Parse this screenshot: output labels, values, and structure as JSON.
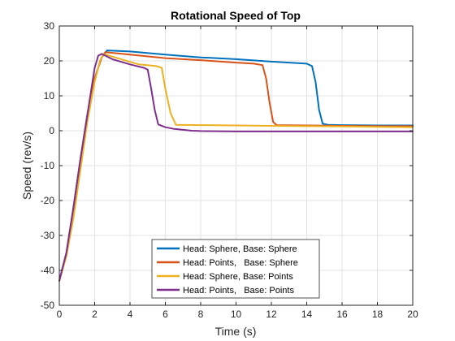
{
  "chart_data": {
    "type": "line",
    "title": "Rotational Speed of Top",
    "xlabel": "Time (s)",
    "ylabel": "Speed (rev/s)",
    "xlim": [
      0,
      20
    ],
    "ylim": [
      -50,
      30
    ],
    "xticks": [
      0,
      2,
      4,
      6,
      8,
      10,
      12,
      14,
      16,
      18,
      20
    ],
    "yticks": [
      -50,
      -40,
      -30,
      -20,
      -10,
      0,
      10,
      20,
      30
    ],
    "grid": true,
    "legend_position": "bottom-center",
    "series": [
      {
        "name": "Head: Sphere, Base: Sphere",
        "color": "#0072BD",
        "x": [
          0,
          0.4,
          0.8,
          1.2,
          1.6,
          2.0,
          2.4,
          2.7,
          4.0,
          6.0,
          8.0,
          10.0,
          12.0,
          13.0,
          14.0,
          14.3,
          14.5,
          14.7,
          14.9,
          15.2,
          16,
          18,
          20
        ],
        "y": [
          -43,
          -35,
          -22,
          -8,
          5,
          15,
          21,
          23,
          22.7,
          21.8,
          21,
          20.5,
          19.8,
          19.5,
          19.2,
          18.5,
          14,
          6,
          2,
          1.7,
          1.6,
          1.5,
          1.5
        ]
      },
      {
        "name": "Head: Points,   Base: Sphere",
        "color": "#D95319",
        "x": [
          0,
          0.4,
          0.8,
          1.2,
          1.6,
          2.0,
          2.4,
          2.6,
          4.0,
          6.0,
          8.0,
          10.0,
          11.0,
          11.5,
          11.7,
          11.9,
          12.1,
          12.3,
          14,
          16,
          18,
          20
        ],
        "y": [
          -43,
          -35,
          -22,
          -8,
          5,
          15,
          21,
          22.5,
          21.8,
          20.8,
          20.2,
          19.5,
          19.2,
          18.8,
          15,
          8,
          2.5,
          1.6,
          1.5,
          1.4,
          1.3,
          1.3
        ]
      },
      {
        "name": "Head: Sphere, Base: Points",
        "color": "#EDB120",
        "x": [
          0,
          0.4,
          0.8,
          1.2,
          1.6,
          2.0,
          2.3,
          2.5,
          3.5,
          4.5,
          5.5,
          5.8,
          6.0,
          6.3,
          6.6,
          8,
          10,
          12,
          14,
          16,
          18,
          20
        ],
        "y": [
          -43,
          -36,
          -25,
          -11,
          3,
          14,
          20,
          22,
          20.5,
          19,
          18.5,
          18,
          12,
          5,
          1.7,
          1.6,
          1.5,
          1.4,
          1.3,
          1.2,
          1.1,
          1.0
        ]
      },
      {
        "name": "Head: Points,   Base: Points",
        "color": "#7E2F8E",
        "x": [
          0,
          0.4,
          0.8,
          1.2,
          1.6,
          2.0,
          2.2,
          2.4,
          3.0,
          4.0,
          4.8,
          5.0,
          5.2,
          5.4,
          5.6,
          6.0,
          6.5,
          7.5,
          8,
          10,
          12,
          14,
          16,
          18,
          20
        ],
        "y": [
          -43,
          -35,
          -22,
          -8,
          5,
          18,
          21.5,
          22,
          20.5,
          19,
          18,
          17.5,
          12,
          6,
          1.8,
          1.0,
          0.5,
          0.0,
          -0.1,
          -0.2,
          -0.2,
          -0.2,
          -0.2,
          -0.2,
          -0.2
        ]
      }
    ]
  }
}
